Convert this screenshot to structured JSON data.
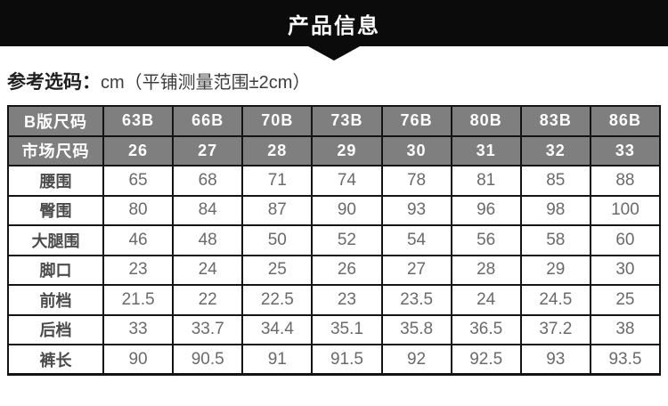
{
  "banner": {
    "title": "产品信息"
  },
  "note": {
    "label": "参考选码：",
    "detail": "cm（平铺测量范围±2cm）"
  },
  "size_table": {
    "header_rows": [
      {
        "label": "B版尺码",
        "values": [
          "63B",
          "66B",
          "70B",
          "73B",
          "76B",
          "80B",
          "83B",
          "86B"
        ]
      },
      {
        "label": "市场尺码",
        "values": [
          "26",
          "27",
          "28",
          "29",
          "30",
          "31",
          "32",
          "33"
        ]
      }
    ],
    "rows": [
      {
        "label": "腰围",
        "values": [
          "65",
          "68",
          "71",
          "74",
          "78",
          "81",
          "85",
          "88"
        ]
      },
      {
        "label": "臀围",
        "values": [
          "80",
          "84",
          "87",
          "90",
          "93",
          "96",
          "98",
          "100"
        ]
      },
      {
        "label": "大腿围",
        "values": [
          "46",
          "48",
          "50",
          "52",
          "54",
          "56",
          "58",
          "60"
        ]
      },
      {
        "label": "脚口",
        "values": [
          "23",
          "24",
          "25",
          "26",
          "27",
          "28",
          "29",
          "30"
        ]
      },
      {
        "label": "前档",
        "values": [
          "21.5",
          "22",
          "22.5",
          "23",
          "23.5",
          "24",
          "24.5",
          "25"
        ]
      },
      {
        "label": "后档",
        "values": [
          "33",
          "33.7",
          "34.4",
          "35.1",
          "35.8",
          "36.5",
          "37.2",
          "38"
        ]
      },
      {
        "label": "裤长",
        "values": [
          "90",
          "90.5",
          "91",
          "91.5",
          "92",
          "92.5",
          "93",
          "93.5"
        ]
      }
    ]
  },
  "colors": {
    "banner_bg": "#0b0b0b",
    "table_header_bg": "#7f7f7f",
    "table_border": "#141414",
    "header_text": "#ffffff",
    "value_text": "#6a6a6a"
  }
}
